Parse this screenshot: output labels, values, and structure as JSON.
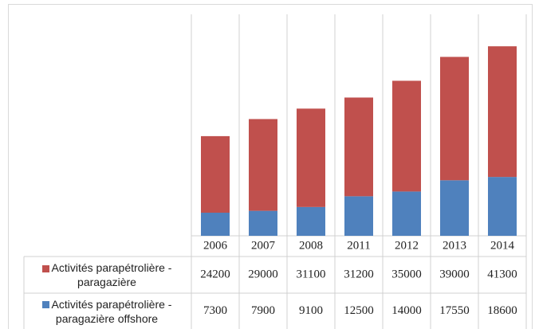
{
  "chart_data": {
    "type": "stacked_bar",
    "categories": [
      "2006",
      "2007",
      "2008",
      "2011",
      "2012",
      "2013",
      "2014"
    ],
    "series": [
      {
        "name": "Activités parapétrolière - paragazière offshore",
        "color": "#4f81bd",
        "values": [
          7300,
          7900,
          9100,
          12500,
          14000,
          17550,
          18600
        ]
      },
      {
        "name": "Activités parapétrolière - paragazière",
        "color": "#c0504d",
        "values": [
          24200,
          29000,
          31100,
          31200,
          35000,
          39000,
          41300
        ]
      }
    ],
    "ylim": [
      0,
      70000
    ],
    "data_table": true
  }
}
